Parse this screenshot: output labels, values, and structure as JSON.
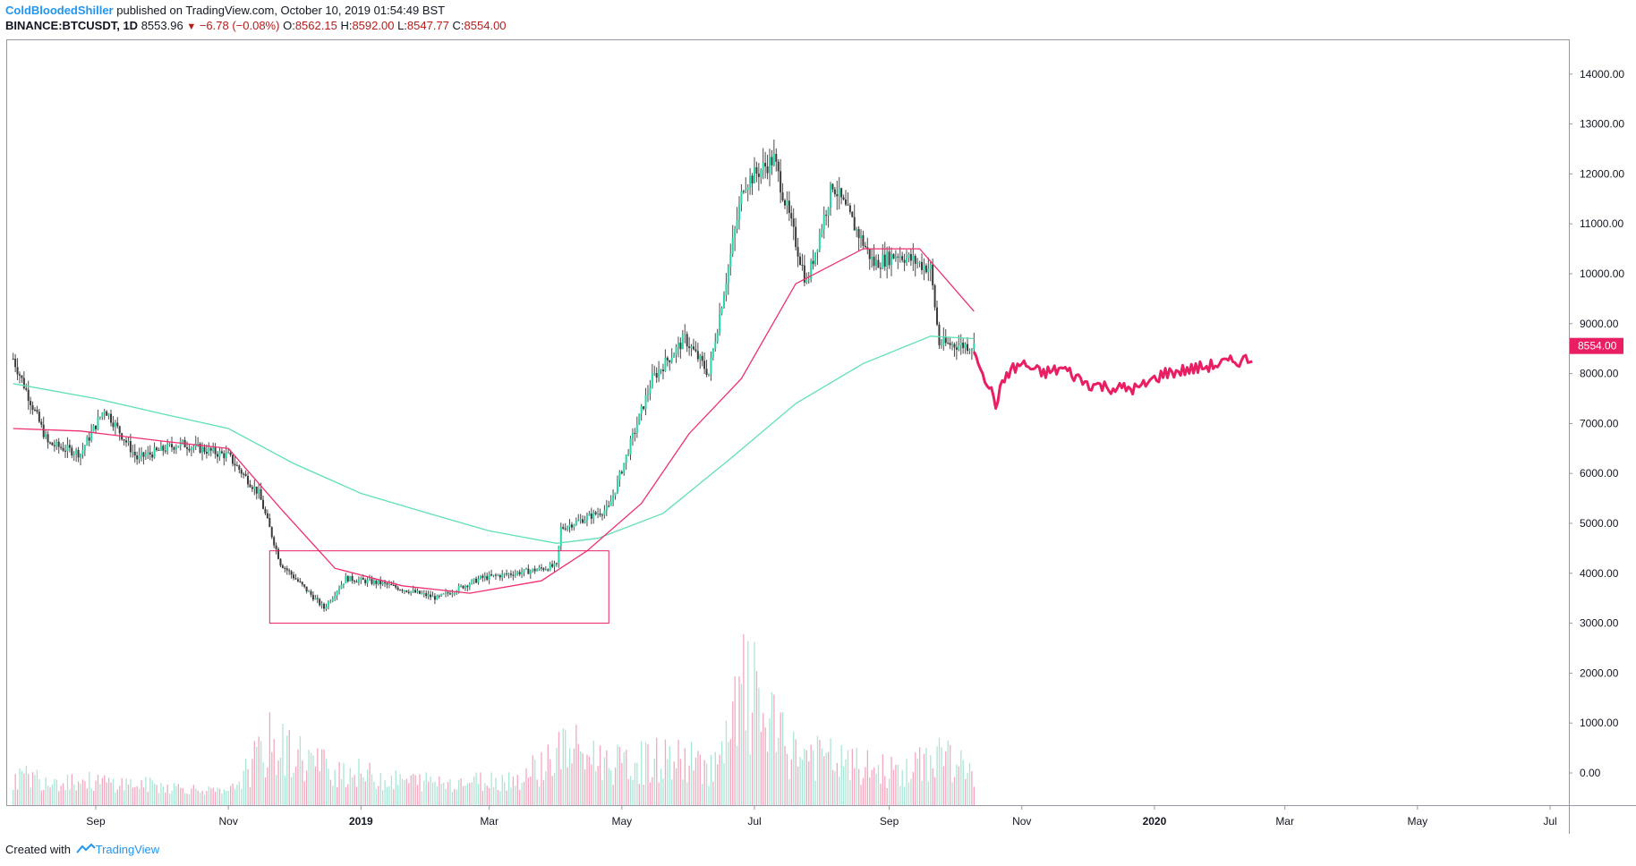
{
  "header": {
    "author": "ColdBloodedShiller",
    "published": " published on TradingView.com, October 10, 2019 01:54:49 BST",
    "symbol": "BINANCE:BTCUSDT, 1D",
    "last": "8553.96",
    "change": "−6.78 (−0.08%)",
    "o_label": "O:",
    "o": "8562.15",
    "h_label": "H:",
    "h": "8592.00",
    "l_label": "L:",
    "l": "8547.77",
    "c_label": "C:",
    "c": "8554.00"
  },
  "footer": {
    "created": "Created with",
    "brand": "TradingView"
  },
  "colors": {
    "up": "#26d6a6",
    "down": "#ef5350",
    "ma_fast": "#ef2f6e",
    "ma_slow": "#5fe0b8",
    "projection": "#e91e63",
    "box": "#e91e63",
    "price_label_bg": "#e91e63"
  },
  "chart_data": {
    "type": "candlestick",
    "price_axis": {
      "ticks": [
        "14000.00",
        "13000.00",
        "12000.00",
        "11000.00",
        "10000.00",
        "9000.00",
        "8000.00",
        "7000.00",
        "6000.00",
        "5000.00",
        "4000.00",
        "3000.00",
        "2000.00",
        "1000.00",
        "0.00"
      ],
      "current_price_label": "8554.00"
    },
    "time_axis": {
      "labels": [
        "Sep",
        "Nov",
        "2019",
        "Mar",
        "May",
        "Jul",
        "Sep",
        "Nov",
        "2020",
        "Mar",
        "May",
        "Jul"
      ],
      "bold": [
        "2019",
        "2020"
      ]
    },
    "series": [
      {
        "name": "BTCUSDT price (close)",
        "x": [
          "2018-07-25",
          "2018-08-10",
          "2018-08-25",
          "2018-09-05",
          "2018-09-20",
          "2018-10-10",
          "2018-11-01",
          "2018-11-15",
          "2018-11-25",
          "2018-12-15",
          "2018-12-25",
          "2019-01-10",
          "2019-02-05",
          "2019-02-25",
          "2019-03-20",
          "2019-04-01",
          "2019-04-03",
          "2019-04-25",
          "2019-05-15",
          "2019-05-30",
          "2019-06-10",
          "2019-06-26",
          "2019-07-10",
          "2019-07-25",
          "2019-08-06",
          "2019-08-25",
          "2019-09-05",
          "2019-09-20",
          "2019-09-24",
          "2019-10-10"
        ],
        "y": [
          8300,
          6600,
          6400,
          7300,
          6300,
          6600,
          6350,
          5600,
          4200,
          3300,
          3900,
          3800,
          3500,
          3900,
          4050,
          4150,
          4900,
          5300,
          7900,
          8700,
          8000,
          11800,
          12300,
          9800,
          11800,
          10200,
          10400,
          10100,
          8600,
          8554
        ]
      },
      {
        "name": "Moving average (fast)",
        "x": [
          "2018-07-25",
          "2018-08-25",
          "2018-10-01",
          "2018-11-01",
          "2018-11-25",
          "2018-12-20",
          "2019-01-20",
          "2019-02-20",
          "2019-03-25",
          "2019-04-15",
          "2019-05-10",
          "2019-06-01",
          "2019-06-25",
          "2019-07-20",
          "2019-08-20",
          "2019-09-15",
          "2019-10-10"
        ],
        "y": [
          6900,
          6850,
          6650,
          6500,
          5300,
          4100,
          3750,
          3600,
          3850,
          4450,
          5400,
          6800,
          7900,
          9800,
          10500,
          10500,
          9250
        ]
      },
      {
        "name": "Moving average (slow)",
        "x": [
          "2018-07-25",
          "2018-09-01",
          "2018-10-01",
          "2018-11-01",
          "2018-12-01",
          "2019-01-01",
          "2019-02-01",
          "2019-03-01",
          "2019-04-01",
          "2019-04-20",
          "2019-05-20",
          "2019-06-20",
          "2019-07-20",
          "2019-08-20",
          "2019-09-20",
          "2019-10-10"
        ],
        "y": [
          7800,
          7500,
          7200,
          6900,
          6200,
          5600,
          5200,
          4850,
          4600,
          4700,
          5200,
          6300,
          7400,
          8200,
          8750,
          8700
        ]
      },
      {
        "name": "Projection",
        "x": [
          "2019-10-10",
          "2019-10-20",
          "2019-10-25",
          "2019-11-01",
          "2019-11-10",
          "2019-11-20",
          "2019-12-01",
          "2019-12-15",
          "2019-12-25",
          "2020-01-05",
          "2020-01-20",
          "2020-02-01",
          "2020-02-15"
        ],
        "y": [
          8500,
          7400,
          8000,
          8200,
          8000,
          8100,
          7800,
          7700,
          7700,
          8000,
          8100,
          8200,
          8300
        ]
      }
    ],
    "volume": {
      "x": [
        "2018-08-01",
        "2018-09-01",
        "2018-10-01",
        "2018-11-01",
        "2018-11-20",
        "2018-12-15",
        "2019-01-15",
        "2019-02-15",
        "2019-03-15",
        "2019-04-05",
        "2019-05-01",
        "2019-05-20",
        "2019-06-15",
        "2019-06-27",
        "2019-07-15",
        "2019-08-15",
        "2019-09-10",
        "2019-09-25",
        "2019-10-10"
      ],
      "values": [
        600,
        450,
        350,
        150,
        1500,
        900,
        500,
        450,
        550,
        1400,
        900,
        1100,
        900,
        3100,
        1400,
        900,
        700,
        1300,
        550
      ]
    },
    "rectangle": {
      "x": [
        "2018-11-20",
        "2019-04-25"
      ],
      "y": [
        3000,
        4450
      ]
    }
  }
}
